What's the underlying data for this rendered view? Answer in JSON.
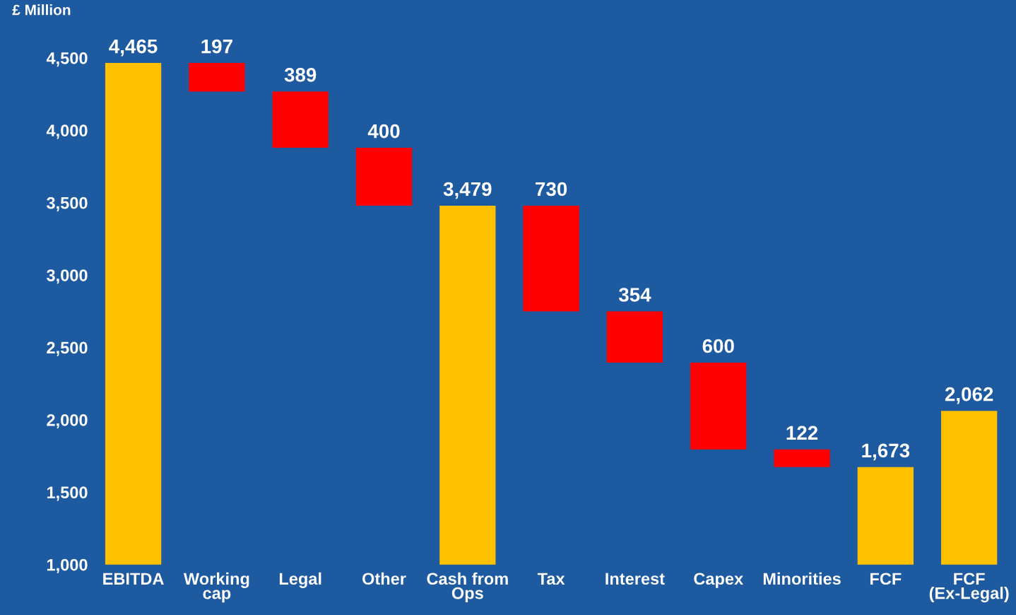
{
  "chart_data": {
    "type": "bar",
    "ylabel": "£ Million",
    "categories": [
      "EBITDA",
      "Working\ncap",
      "Legal",
      "Other",
      "Cash from\nOps",
      "Tax",
      "Interest",
      "Capex",
      "Minorities",
      "FCF",
      "FCF\n(Ex-Legal)"
    ],
    "values": [
      4465,
      197,
      389,
      400,
      3479,
      730,
      354,
      600,
      122,
      1673,
      2062
    ],
    "base": [
      0,
      4268,
      3879,
      3479,
      0,
      2749,
      2395,
      1795,
      1673,
      0,
      0
    ],
    "colors": [
      "#ffc000",
      "#ff0000",
      "#ff0000",
      "#ff0000",
      "#ffc000",
      "#ff0000",
      "#ff0000",
      "#ff0000",
      "#ff0000",
      "#ffc000",
      "#ffc000"
    ],
    "ylim": [
      1000,
      4900
    ],
    "yticks": [
      {
        "value": 1000,
        "label": "1,000"
      },
      {
        "value": 1500,
        "label": "1,500"
      },
      {
        "value": 2000,
        "label": "2,000"
      },
      {
        "value": 2500,
        "label": "2,500"
      },
      {
        "value": 3000,
        "label": "3,000"
      },
      {
        "value": 3500,
        "label": "3,500"
      },
      {
        "value": 4000,
        "label": "4,000"
      },
      {
        "value": 4500,
        "label": "4,500"
      }
    ],
    "value_labels": [
      "4,465",
      "197",
      "389",
      "400",
      "3,479",
      "730",
      "354",
      "600",
      "122",
      "1,673",
      "2,062"
    ],
    "grid": false,
    "legend": false
  }
}
